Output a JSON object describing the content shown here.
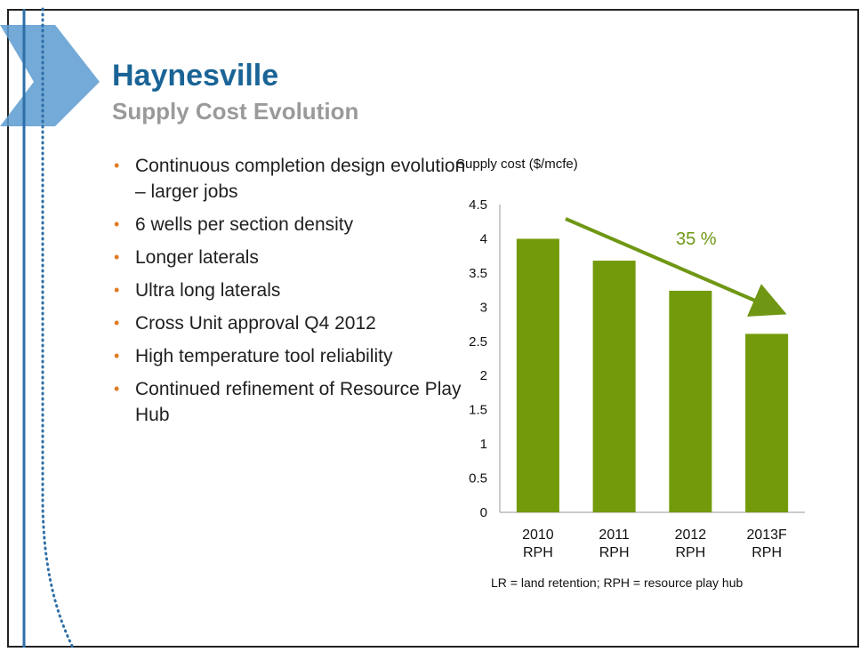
{
  "slide": {
    "title": "Haynesville",
    "subtitle": "Supply Cost Evolution",
    "bullets": [
      "Continuous completion design evolution – larger jobs",
      "6 wells per section density",
      "Longer laterals",
      "Ultra long laterals",
      "Cross Unit approval Q4 2012",
      "High temperature tool reliability",
      "Continued refinement of Resource Play Hub"
    ],
    "bullet_marker": "•"
  },
  "colors": {
    "bar": "#739a0b",
    "title": "#1a6496",
    "subtitle": "#9a9a9a",
    "bullet_marker": "#e07b24",
    "deco_blue": "#4f8fc0"
  },
  "chart_data": {
    "type": "bar",
    "ylabel": "Supply cost ($/mcfe)",
    "categories": [
      [
        "2010",
        "RPH"
      ],
      [
        "2011",
        "RPH"
      ],
      [
        "2012",
        "RPH"
      ],
      [
        "2013F",
        "RPH"
      ]
    ],
    "values": [
      4.0,
      3.68,
      3.24,
      2.61
    ],
    "ylim": [
      0,
      4.5
    ],
    "yticks": [
      "0",
      "0.5",
      "1",
      "1.5",
      "2",
      "2.5",
      "3",
      "3.5",
      "4",
      "4.5"
    ],
    "annotation": {
      "text": "35 %",
      "arrow": "down-right"
    },
    "footnote": "LR = land retention; RPH = resource play hub",
    "grid": false
  }
}
